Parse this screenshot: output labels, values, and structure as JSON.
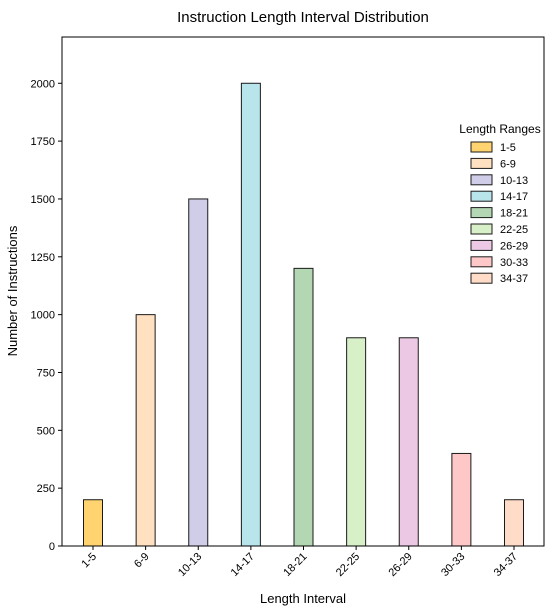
{
  "chart_data": {
    "type": "bar",
    "title": "Instruction Length Interval Distribution",
    "xlabel": "Length Interval",
    "ylabel": "Number of Instructions",
    "categories": [
      "1-5",
      "6-9",
      "10-13",
      "14-17",
      "18-21",
      "22-25",
      "26-29",
      "30-33",
      "34-37"
    ],
    "values": [
      200,
      1000,
      1500,
      2000,
      1200,
      900,
      900,
      400,
      200
    ],
    "colors": [
      "#ffd470",
      "#ffe0c0",
      "#d0cde8",
      "#b8e4ec",
      "#b3d6b3",
      "#d8f0c8",
      "#ecc8e4",
      "#ffc8c8",
      "#ffdcc8"
    ],
    "ylim": [
      0,
      2200
    ],
    "yticks": [
      0,
      250,
      500,
      750,
      1000,
      1250,
      1500,
      1750,
      2000
    ],
    "grid": false,
    "legend": {
      "title": "Length Ranges",
      "placement": "right",
      "entries": [
        "1-5",
        "6-9",
        "10-13",
        "14-17",
        "18-21",
        "22-25",
        "26-29",
        "30-33",
        "34-37"
      ]
    }
  }
}
